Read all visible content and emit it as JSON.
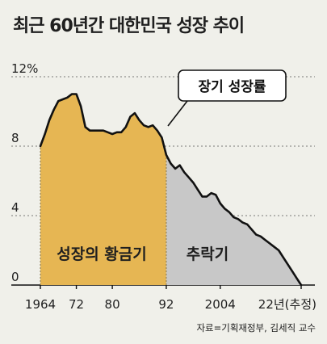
{
  "title": "최근 60년간 대한민국 성장 추이",
  "source": "자료=기획재정부, 김세직 교수",
  "colors": {
    "background": "#f0f0ea",
    "golden_period": "#e6b653",
    "decline_period": "#c8c8c8",
    "line": "#111111",
    "grid": "#777777"
  },
  "chart_data": {
    "type": "area",
    "title": "최근 60년간 대한민국 성장 추이",
    "series": [
      {
        "name": "장기 성장률",
        "x": [
          1964,
          1965,
          1966,
          1967,
          1968,
          1969,
          1970,
          1971,
          1972,
          1973,
          1974,
          1975,
          1976,
          1977,
          1978,
          1979,
          1980,
          1981,
          1982,
          1983,
          1984,
          1985,
          1986,
          1987,
          1988,
          1989,
          1990,
          1991,
          1992,
          1993,
          1994,
          1995,
          1996,
          1997,
          1998,
          1999,
          2000,
          2001,
          2002,
          2003,
          2004,
          2005,
          2006,
          2007,
          2008,
          2009,
          2010,
          2011,
          2012,
          2013,
          2014,
          2015,
          2016,
          2017,
          2018,
          2019,
          2020,
          2021,
          2022
        ],
        "values": [
          8.0,
          8.7,
          9.5,
          10.1,
          10.6,
          10.7,
          10.8,
          11.0,
          11.0,
          10.3,
          9.1,
          8.9,
          8.9,
          8.9,
          8.9,
          8.8,
          8.7,
          8.8,
          8.8,
          9.1,
          9.7,
          9.9,
          9.5,
          9.2,
          9.1,
          9.2,
          8.9,
          8.5,
          7.5,
          7.0,
          6.7,
          6.9,
          6.5,
          6.2,
          5.9,
          5.5,
          5.1,
          5.1,
          5.3,
          5.2,
          4.7,
          4.4,
          4.2,
          3.9,
          3.8,
          3.6,
          3.5,
          3.2,
          2.9,
          2.8,
          2.6,
          2.4,
          2.2,
          2.0,
          1.6,
          1.2,
          0.8,
          0.4,
          0.0
        ]
      }
    ],
    "periods": [
      {
        "label": "성장의 황금기",
        "from": 1964,
        "to": 1992
      },
      {
        "label": "추락기",
        "from": 1992,
        "to": 2022
      }
    ],
    "callout": "장기 성장률",
    "yticks": [
      "0",
      "4",
      "8",
      "12%"
    ],
    "ytick_values": [
      0,
      4,
      8,
      12
    ],
    "xtick_labels": [
      "1964",
      "72",
      "80",
      "92",
      "2004",
      "22년(추정)"
    ],
    "xtick_values": [
      1964,
      1972,
      1980,
      1992,
      2004,
      2022
    ],
    "xlim": [
      1964,
      2022
    ],
    "ylim": [
      0,
      12
    ],
    "grid": true
  }
}
